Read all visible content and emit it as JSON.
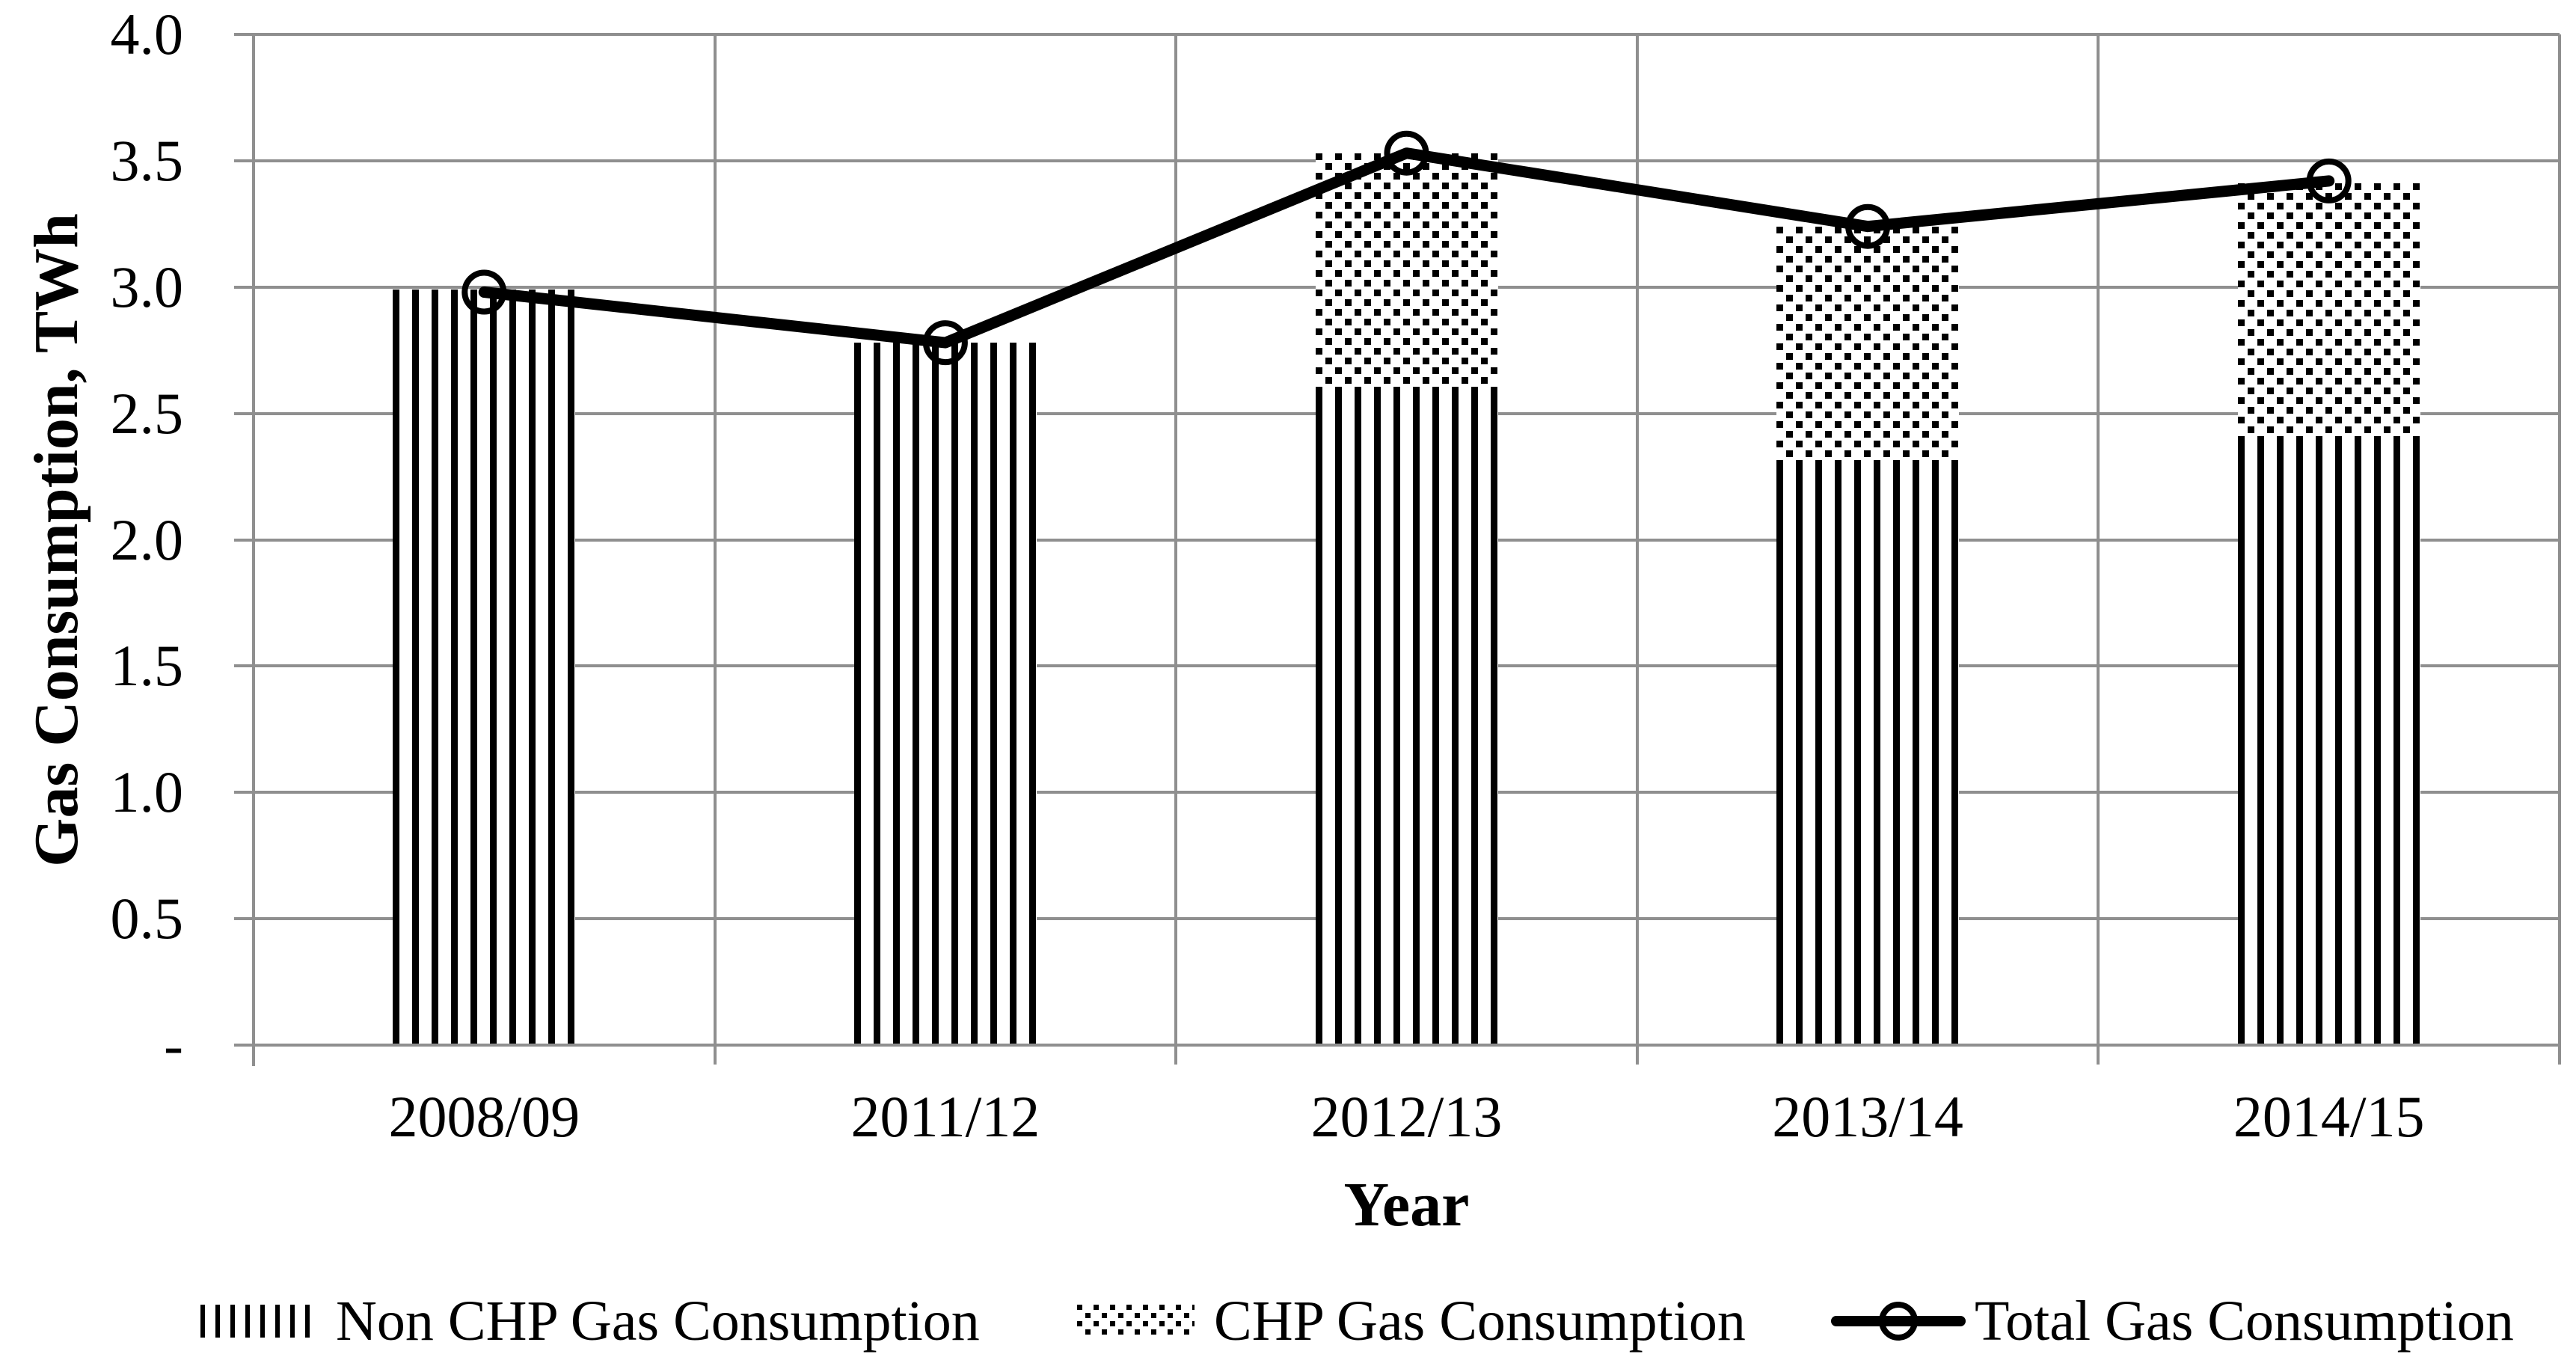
{
  "colors": {
    "ink": "#000000",
    "grid": "#8f8f8f",
    "axis": "#8f8f8f",
    "background": "#ffffff"
  },
  "y_axis": {
    "title": "Gas Consumption, TWh",
    "tick_labels": [
      "4.0",
      "3.5",
      "3.0",
      "2.5",
      "2.0",
      "1.5",
      "1.0",
      "0.5",
      "-"
    ]
  },
  "x_axis": {
    "title": "Year",
    "tick_labels": [
      "2008/09",
      "2011/12",
      "2012/13",
      "2013/14",
      "2014/15"
    ]
  },
  "legend": {
    "items": [
      {
        "label": "Non CHP Gas Consumption",
        "swatch": "vertical-stripes"
      },
      {
        "label": "CHP Gas Consumption",
        "swatch": "dots"
      },
      {
        "label": "Total Gas Consumption",
        "swatch": "line-open-circle"
      }
    ]
  },
  "chart_data": {
    "type": "combo",
    "categories": [
      "2008/09",
      "2011/12",
      "2012/13",
      "2013/14",
      "2014/15"
    ],
    "series": [
      {
        "name": "Non CHP Gas Consumption",
        "type": "bar",
        "stack": "gas",
        "pattern": "vertical-stripes",
        "values": [
          2.99,
          2.78,
          2.6,
          2.29,
          2.41
        ]
      },
      {
        "name": "CHP Gas Consumption",
        "type": "bar",
        "stack": "gas",
        "pattern": "dots",
        "values": [
          0.0,
          0.0,
          0.93,
          0.95,
          1.0
        ]
      },
      {
        "name": "Total Gas Consumption",
        "type": "line",
        "marker": "open-circle",
        "values": [
          2.98,
          2.78,
          3.53,
          3.24,
          3.42
        ]
      }
    ],
    "xlabel": "Year",
    "ylabel": "Gas Consumption, TWh",
    "ylim": [
      0,
      4
    ],
    "ytick_step": 0.5,
    "grid": "both",
    "legend_position": "bottom"
  }
}
